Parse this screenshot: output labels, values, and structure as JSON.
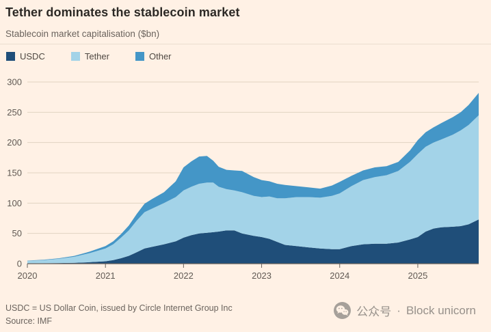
{
  "header": {
    "title": "Tether dominates the stablecoin market",
    "subtitle": "Stablecoin market capitalisation ($bn)"
  },
  "legend": [
    {
      "label": "USDC",
      "color": "#1F4E79"
    },
    {
      "label": "Tether",
      "color": "#A3D3E8"
    },
    {
      "label": "Other",
      "color": "#4496C7"
    }
  ],
  "footer": {
    "note": "USDC = US Dollar Coin, issued by Circle Internet Group Inc",
    "source": "Source: IMF"
  },
  "watermark": {
    "icon": "wechat-icon",
    "account_label": "公众号",
    "separator": "·",
    "name": "Block unicorn"
  },
  "colors": {
    "background": "#FFF1E5",
    "title": "#2C2925",
    "muted": "#6A635D",
    "grid": "#E0D3C1",
    "axis": "#66605B"
  },
  "chart_data": {
    "type": "area",
    "stacked": true,
    "title": "Tether dominates the stablecoin market",
    "subtitle": "Stablecoin market capitalisation ($bn)",
    "ylabel": "Stablecoin market capitalisation ($bn)",
    "xlabel": "",
    "grid": "horizontal",
    "legend_position": "top-left",
    "xlim": [
      2020,
      2025.78
    ],
    "ylim": [
      0,
      300
    ],
    "yticks": [
      0,
      50,
      100,
      150,
      200,
      250,
      300
    ],
    "xticks": [
      2020,
      2021,
      2022,
      2023,
      2024,
      2025
    ],
    "x": [
      2020.0,
      2020.2,
      2020.4,
      2020.6,
      2020.8,
      2021.0,
      2021.1,
      2021.2,
      2021.3,
      2021.4,
      2021.5,
      2021.6,
      2021.75,
      2021.9,
      2022.0,
      2022.1,
      2022.2,
      2022.3,
      2022.38,
      2022.45,
      2022.55,
      2022.65,
      2022.75,
      2022.9,
      2023.0,
      2023.1,
      2023.2,
      2023.3,
      2023.45,
      2023.6,
      2023.75,
      2023.9,
      2024.0,
      2024.15,
      2024.3,
      2024.45,
      2024.6,
      2024.75,
      2024.9,
      2025.0,
      2025.1,
      2025.2,
      2025.3,
      2025.45,
      2025.55,
      2025.65,
      2025.78
    ],
    "series": [
      {
        "name": "USDC",
        "color": "#1F4E79",
        "values": [
          0.5,
          0.7,
          1.0,
          1.4,
          2.5,
          4,
          6,
          9,
          13,
          19,
          25,
          28,
          32,
          37,
          43,
          47,
          50,
          51,
          52,
          53,
          55,
          55,
          50,
          46,
          44,
          41,
          36,
          31,
          29,
          27,
          25,
          24,
          24,
          29,
          32,
          33,
          33,
          35,
          40,
          44,
          53,
          58,
          60,
          61,
          62,
          65,
          73
        ]
      },
      {
        "name": "Tether",
        "color": "#A3D3E8",
        "values": [
          4.1,
          5,
          7,
          10,
          15,
          21,
          26,
          34,
          42,
          52,
          60,
          63,
          68,
          73,
          78,
          80,
          82,
          83,
          82,
          74,
          68,
          66,
          68,
          66,
          66,
          70,
          72,
          77,
          81,
          83,
          84,
          88,
          92,
          99,
          106,
          110,
          113,
          118,
          128,
          137,
          140,
          142,
          145,
          152,
          158,
          164,
          172
        ]
      },
      {
        "name": "Other",
        "color": "#4496C7",
        "values": [
          0.5,
          0.7,
          0.9,
          1.5,
          2.5,
          4,
          5,
          6,
          8,
          11,
          14,
          16,
          18,
          26,
          38,
          42,
          45,
          44,
          36,
          33,
          32,
          33,
          35,
          31,
          28,
          25,
          24,
          22,
          18,
          16,
          15,
          17,
          19,
          17,
          16,
          16,
          15,
          15,
          19,
          23,
          24,
          25,
          27,
          29,
          30,
          33,
          37
        ]
      }
    ]
  }
}
